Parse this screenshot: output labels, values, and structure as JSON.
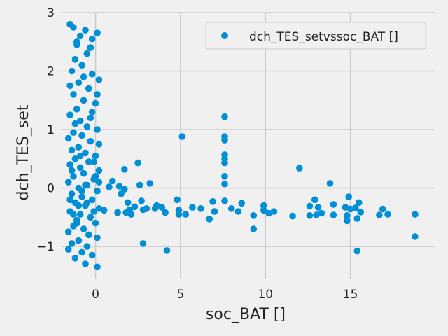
{
  "chart_data": {
    "type": "scatter",
    "title": "",
    "xlabel": "soc_BAT []",
    "ylabel": "dch_TES_set",
    "xlim": [
      -2,
      20
    ],
    "ylim": [
      -1.55,
      3.0
    ],
    "xticks": [
      0,
      5,
      10,
      15
    ],
    "xtick_labels": [
      "0",
      "5",
      "10",
      "15"
    ],
    "yticks": [
      -1,
      0,
      1,
      2,
      3
    ],
    "ytick_labels": [
      "−1",
      "0",
      "1",
      "2",
      "3"
    ],
    "grid": true,
    "legend": {
      "position": "top-right"
    },
    "marker": "circle",
    "colors": {
      "point": "#008fd5",
      "background": "#f0f0f0",
      "grid": "#cbcbcb"
    },
    "series": [
      {
        "name": "dch_TES_setvssoc_BAT []",
        "points": [
          [
            -1.5,
            2.8
          ],
          [
            -1.3,
            2.75
          ],
          [
            -1.1,
            2.5
          ],
          [
            -0.9,
            2.6
          ],
          [
            -0.6,
            2.7
          ],
          [
            -0.3,
            2.4
          ],
          [
            0.1,
            2.65
          ],
          [
            -0.5,
            2.3
          ],
          [
            -1.2,
            2.2
          ],
          [
            -0.8,
            2.1
          ],
          [
            -1.4,
            2.0
          ],
          [
            -0.2,
            1.95
          ],
          [
            0.2,
            1.85
          ],
          [
            -1.0,
            1.8
          ],
          [
            -0.4,
            1.7
          ],
          [
            -1.3,
            1.6
          ],
          [
            -0.7,
            1.5
          ],
          [
            0.0,
            1.45
          ],
          [
            -1.1,
            1.35
          ],
          [
            -0.2,
            1.3
          ],
          [
            -1.5,
            1.25
          ],
          [
            -0.9,
            1.15
          ],
          [
            -0.5,
            1.05
          ],
          [
            0.1,
            1.0
          ],
          [
            -1.3,
            0.95
          ],
          [
            -0.8,
            0.9
          ],
          [
            -1.6,
            0.85
          ],
          [
            -0.3,
            0.8
          ],
          [
            0.2,
            0.75
          ],
          [
            -1.0,
            0.7
          ],
          [
            -1.4,
            0.65
          ],
          [
            -0.6,
            0.6
          ],
          [
            0.0,
            0.55
          ],
          [
            -1.2,
            0.5
          ],
          [
            -0.4,
            0.45
          ],
          [
            -1.5,
            0.4
          ],
          [
            -0.9,
            0.35
          ],
          [
            0.2,
            0.3
          ],
          [
            -0.7,
            0.25
          ],
          [
            -1.3,
            0.2
          ],
          [
            -0.1,
            0.15
          ],
          [
            -1.6,
            0.1
          ],
          [
            -0.5,
            0.05
          ],
          [
            -1.0,
            0.0
          ],
          [
            0.1,
            -0.05
          ],
          [
            -1.4,
            -0.1
          ],
          [
            -0.8,
            -0.15
          ],
          [
            -0.2,
            -0.2
          ],
          [
            -1.2,
            -0.25
          ],
          [
            -0.6,
            -0.3
          ],
          [
            0.2,
            -0.35
          ],
          [
            -1.5,
            -0.4
          ],
          [
            -0.9,
            -0.45
          ],
          [
            -0.3,
            -0.5
          ],
          [
            -1.1,
            -0.55
          ],
          [
            0.0,
            -0.6
          ],
          [
            -1.3,
            -0.65
          ],
          [
            -0.7,
            -0.7
          ],
          [
            -1.6,
            -0.75
          ],
          [
            -0.4,
            -0.8
          ],
          [
            0.1,
            -0.85
          ],
          [
            -1.0,
            -0.9
          ],
          [
            -1.4,
            -0.95
          ],
          [
            -0.5,
            -1.0
          ],
          [
            -1.6,
            -1.05
          ],
          [
            -0.8,
            -1.1
          ],
          [
            -0.2,
            -1.15
          ],
          [
            -1.2,
            -1.2
          ],
          [
            -0.6,
            -1.3
          ],
          [
            0.1,
            -1.35
          ],
          [
            -1.1,
            2.45
          ],
          [
            -0.2,
            2.55
          ],
          [
            -0.7,
            1.9
          ],
          [
            -1.5,
            1.75
          ],
          [
            0.1,
            1.6
          ],
          [
            -0.3,
            1.2
          ],
          [
            -1.2,
            1.1
          ],
          [
            -0.9,
            0.55
          ],
          [
            -0.1,
            0.45
          ],
          [
            -1.5,
            -0.2
          ],
          [
            -0.5,
            -0.25
          ],
          [
            -1.0,
            -0.3
          ],
          [
            0.2,
            0.1
          ],
          [
            -1.3,
            -0.45
          ],
          [
            -0.6,
            0.05
          ],
          [
            -0.1,
            -0.4
          ],
          [
            -1.4,
            0.3
          ],
          [
            -0.8,
            -0.05
          ],
          [
            0.0,
            0.2
          ],
          [
            -1.1,
            -0.6
          ],
          [
            0.5,
            -0.38
          ],
          [
            0.8,
            0.02
          ],
          [
            1.0,
            0.12
          ],
          [
            1.3,
            -0.42
          ],
          [
            1.4,
            0.03
          ],
          [
            1.5,
            -0.1
          ],
          [
            1.7,
            0.32
          ],
          [
            1.7,
            -0.02
          ],
          [
            1.8,
            -0.42
          ],
          [
            1.9,
            -0.25
          ],
          [
            2.0,
            -0.37
          ],
          [
            2.1,
            -0.45
          ],
          [
            2.3,
            -0.32
          ],
          [
            2.5,
            0.43
          ],
          [
            2.6,
            0.05
          ],
          [
            2.7,
            -0.22
          ],
          [
            2.8,
            -0.37
          ],
          [
            2.8,
            -0.95
          ],
          [
            3.0,
            -0.35
          ],
          [
            3.2,
            0.08
          ],
          [
            3.5,
            -0.35
          ],
          [
            3.6,
            -0.3
          ],
          [
            3.9,
            -0.33
          ],
          [
            4.1,
            -0.42
          ],
          [
            4.2,
            -1.07
          ],
          [
            4.8,
            -0.2
          ],
          [
            4.9,
            -0.38
          ],
          [
            4.9,
            -0.45
          ],
          [
            5.1,
            0.88
          ],
          [
            5.3,
            -0.45
          ],
          [
            5.7,
            -0.33
          ],
          [
            6.2,
            -0.35
          ],
          [
            6.7,
            -0.53
          ],
          [
            6.9,
            -0.23
          ],
          [
            7.0,
            -0.4
          ],
          [
            7.6,
            1.22
          ],
          [
            7.6,
            0.88
          ],
          [
            7.6,
            0.82
          ],
          [
            7.6,
            0.57
          ],
          [
            7.6,
            0.5
          ],
          [
            7.6,
            0.43
          ],
          [
            7.6,
            0.2
          ],
          [
            7.6,
            0.07
          ],
          [
            7.6,
            -0.22
          ],
          [
            8.0,
            -0.35
          ],
          [
            8.4,
            -0.4
          ],
          [
            8.6,
            -0.26
          ],
          [
            9.3,
            -0.47
          ],
          [
            9.3,
            -0.7
          ],
          [
            9.9,
            -0.3
          ],
          [
            9.9,
            -0.38
          ],
          [
            10.2,
            -0.43
          ],
          [
            10.5,
            -0.4
          ],
          [
            11.6,
            -0.48
          ],
          [
            12.0,
            0.34
          ],
          [
            12.6,
            -0.31
          ],
          [
            12.6,
            -0.47
          ],
          [
            12.9,
            -0.2
          ],
          [
            13.0,
            -0.46
          ],
          [
            13.1,
            -0.33
          ],
          [
            13.3,
            -0.43
          ],
          [
            13.8,
            0.08
          ],
          [
            14.0,
            -0.28
          ],
          [
            14.0,
            -0.46
          ],
          [
            14.7,
            -0.33
          ],
          [
            14.8,
            -0.56
          ],
          [
            14.8,
            -0.47
          ],
          [
            14.9,
            -0.15
          ],
          [
            15.0,
            -0.36
          ],
          [
            15.3,
            -0.34
          ],
          [
            15.4,
            -0.52
          ],
          [
            15.5,
            -0.25
          ],
          [
            15.4,
            -1.08
          ],
          [
            15.6,
            -0.41
          ],
          [
            16.7,
            -0.46
          ],
          [
            16.9,
            -0.36
          ],
          [
            17.2,
            -0.45
          ],
          [
            18.8,
            -0.45
          ],
          [
            18.8,
            -0.83
          ]
        ]
      }
    ]
  }
}
